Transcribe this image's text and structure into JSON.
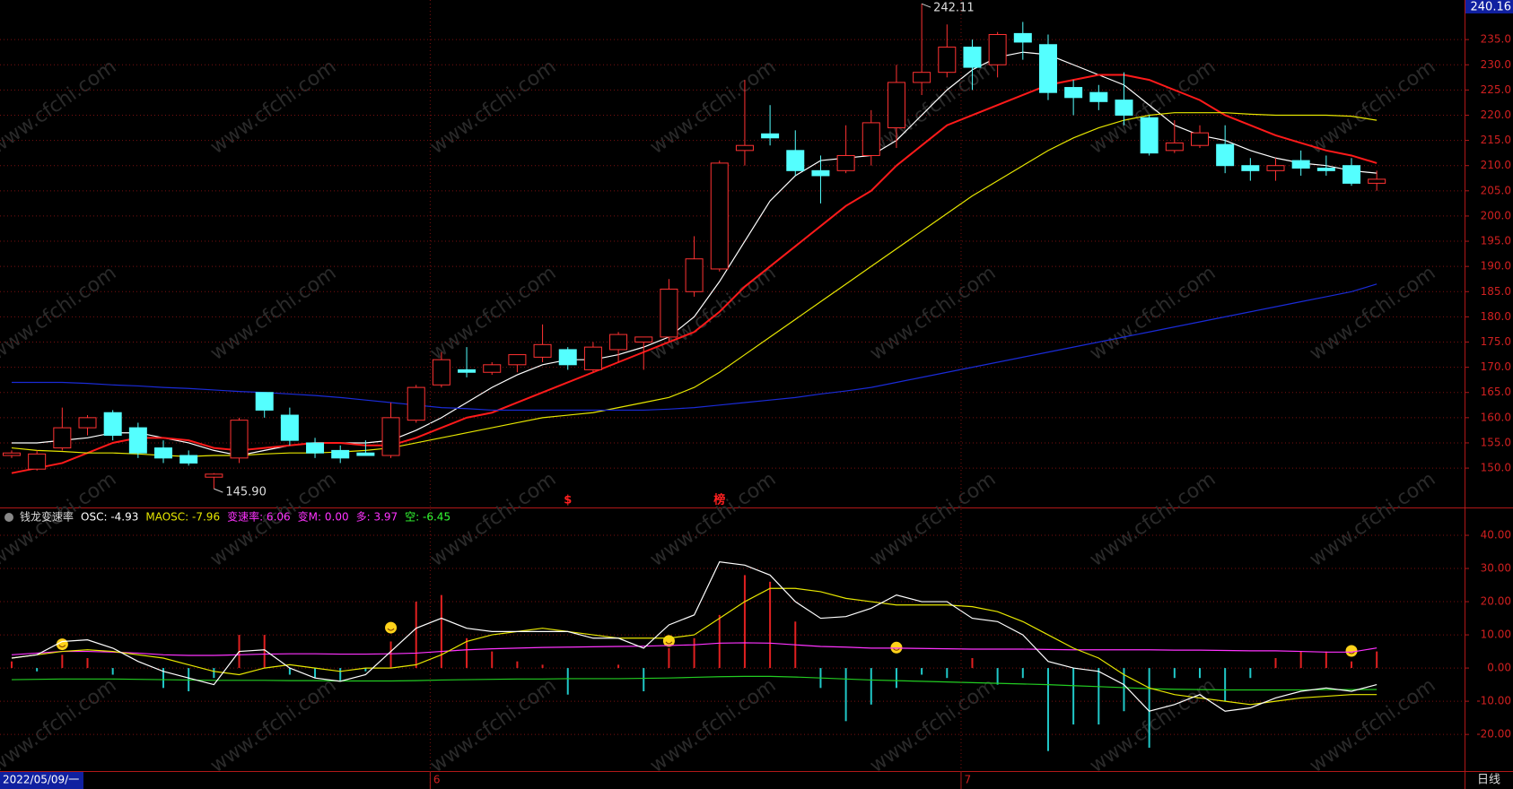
{
  "chart_data": [
    {
      "type": "candlestick",
      "open": [
        152.5,
        149.8,
        154,
        158,
        161,
        158,
        154,
        152.5,
        148.2,
        152,
        165,
        160.5,
        155,
        153.5,
        153,
        152.5,
        159.5,
        166.5,
        169.5,
        169,
        170.5,
        172,
        173.5,
        169.5,
        173.5,
        175,
        176,
        185,
        189.5,
        213,
        216.3,
        213,
        209,
        209,
        212,
        217.5,
        226.5,
        228.5,
        233.5,
        230,
        236.2,
        234,
        225.5,
        224.5,
        223,
        219.5,
        213,
        214,
        214.2,
        210,
        209,
        211,
        209.5,
        210,
        206.5
      ],
      "high": [
        153.5,
        153.5,
        162,
        160.5,
        161.5,
        159,
        155.5,
        153.5,
        149,
        160,
        165,
        162,
        156,
        154.5,
        155.5,
        163,
        166.5,
        173,
        174,
        171,
        172.5,
        178.5,
        174,
        175,
        177,
        176,
        187.5,
        196,
        211,
        227,
        222,
        217,
        212,
        218,
        221,
        230,
        242.11,
        238,
        235,
        236.5,
        238.5,
        236,
        227,
        226,
        228.5,
        220,
        219,
        218,
        218,
        211.5,
        211.5,
        213,
        212,
        211.5,
        209
      ],
      "low": [
        152,
        149.5,
        153.5,
        156.5,
        155.5,
        152,
        151,
        150.5,
        145.9,
        151,
        160,
        154.5,
        152,
        151,
        152.5,
        152,
        159,
        166,
        168,
        168.5,
        169,
        171,
        169.5,
        169,
        171,
        169.5,
        175,
        184,
        189,
        210,
        214,
        208,
        202.5,
        208.5,
        210,
        213.5,
        224,
        227.5,
        225,
        227.5,
        231,
        223,
        220,
        221,
        218,
        212,
        212.5,
        213.5,
        208.5,
        207,
        207,
        208,
        208,
        206,
        205
      ],
      "close": [
        153,
        152.8,
        158,
        160,
        156.5,
        153,
        152,
        151,
        148.8,
        159.5,
        161.5,
        155.5,
        153,
        152,
        152.5,
        160,
        166,
        171.5,
        169,
        170.5,
        172.5,
        174.5,
        170.5,
        174,
        176.5,
        176,
        185.5,
        191.5,
        210.5,
        214,
        215.5,
        209,
        208,
        212,
        218.5,
        226.5,
        228.5,
        233.5,
        229.5,
        236,
        234.5,
        224.5,
        223.5,
        222.7,
        220,
        212.5,
        214.5,
        216.5,
        210,
        209,
        210,
        209.5,
        209,
        206.5,
        207.3
      ],
      "up_color": "#ff3232",
      "down_color": "#54ffff",
      "lines": [
        {
          "color": "#ffffff",
          "values": [
            155,
            155,
            155.5,
            156,
            157,
            157,
            156,
            155,
            153.5,
            152.5,
            153.5,
            154.5,
            155,
            155,
            155,
            155.5,
            157.5,
            160,
            163,
            166,
            168.5,
            170.5,
            171.5,
            171.5,
            172.5,
            174,
            176,
            180,
            187,
            195,
            203,
            208,
            211,
            211.5,
            212,
            215,
            220,
            225,
            229,
            231.5,
            232.5,
            232,
            230,
            228,
            226,
            222,
            218,
            216,
            215,
            213,
            211.5,
            210.5,
            210,
            209,
            208.5
          ]
        },
        {
          "color": "#ff1a1a",
          "values": [
            149,
            150,
            151,
            153,
            155,
            156,
            156,
            155.5,
            154,
            153.5,
            154,
            154.5,
            155,
            155,
            154.5,
            154.5,
            156,
            158,
            160,
            161,
            163,
            165,
            167,
            169,
            171,
            173,
            175,
            177,
            181,
            186,
            190,
            194,
            198,
            202,
            205,
            210,
            214,
            218,
            220,
            222,
            224,
            226,
            227,
            228,
            228,
            227,
            225,
            223,
            220,
            218,
            216,
            214.5,
            213,
            212,
            210.5
          ]
        },
        {
          "color": "#e6e600",
          "values": [
            154,
            153.5,
            153.3,
            153,
            153,
            152.8,
            152.5,
            152.3,
            152.5,
            152.5,
            152.8,
            153,
            153,
            153.2,
            153.5,
            154,
            155,
            156,
            157,
            158,
            159,
            160,
            160.5,
            161,
            162,
            163,
            164,
            166,
            169,
            172.5,
            176,
            179.5,
            183,
            186.5,
            190,
            193.5,
            197,
            200.5,
            204,
            207,
            210,
            213,
            215.5,
            217.5,
            219,
            220,
            220.5,
            220.5,
            220.5,
            220.2,
            220,
            220,
            220,
            219.8,
            219
          ]
        },
        {
          "color": "#1a2bd6",
          "values": [
            167,
            167,
            167,
            166.8,
            166.5,
            166.3,
            166,
            165.8,
            165.5,
            165.2,
            165,
            164.7,
            164.4,
            164,
            163.5,
            163,
            162.5,
            162,
            161.8,
            161.5,
            161.5,
            161.5,
            161.5,
            161.5,
            161.5,
            161.5,
            161.7,
            162,
            162.5,
            163,
            163.5,
            164,
            164.7,
            165.3,
            166,
            167,
            168,
            169,
            170,
            171,
            172,
            173,
            174,
            175,
            176,
            177,
            178,
            179,
            180,
            181,
            182,
            183,
            184,
            185,
            186.5
          ]
        }
      ],
      "ylim": [
        142.9,
        242.85
      ],
      "yticks": [
        {
          "value": 150,
          "label": "150.0"
        },
        {
          "value": 155,
          "label": "155.0"
        },
        {
          "value": 160,
          "label": "160.0"
        },
        {
          "value": 165,
          "label": "165.0"
        },
        {
          "value": 170,
          "label": "170.0"
        },
        {
          "value": 175,
          "label": "175.0"
        },
        {
          "value": 180,
          "label": "180.0"
        },
        {
          "value": 185,
          "label": "185.0"
        },
        {
          "value": 190,
          "label": "190.0"
        },
        {
          "value": 195,
          "label": "195.0"
        },
        {
          "value": 200,
          "label": "200.0"
        },
        {
          "value": 205,
          "label": "205.0"
        },
        {
          "value": 210,
          "label": "210.0"
        },
        {
          "value": 215,
          "label": "215.0"
        },
        {
          "value": 220,
          "label": "220.0"
        },
        {
          "value": 225,
          "label": "225.0"
        },
        {
          "value": 230,
          "label": "230.0"
        },
        {
          "value": 235,
          "label": "235.0"
        }
      ],
      "axis_top_label": "240.16",
      "annotations": [
        {
          "index": 36,
          "value": 242.11
        },
        {
          "index": 8,
          "value": 145.9,
          "label": "145.90"
        }
      ],
      "markers": [
        {
          "index": 22,
          "label": "$"
        },
        {
          "index": 28,
          "label": "榜"
        }
      ],
      "grid": true
    },
    {
      "type": "indicator",
      "legend": [
        {
          "text": "钱龙变速率",
          "color": "#dddddd"
        },
        {
          "text": "OSC: -4.93",
          "color": "#ffffff"
        },
        {
          "text": "MAOSC: -7.96",
          "color": "#e6e600"
        },
        {
          "text": "变速率: 6.06",
          "color": "#ff33ff"
        },
        {
          "text": "变M: 0.00",
          "color": "#ff33ff"
        },
        {
          "text": "多: 3.97",
          "color": "#ff33ff"
        },
        {
          "text": "空: -6.45",
          "color": "#33ff33"
        }
      ],
      "bars": [
        2,
        -1,
        4,
        3,
        -2,
        0,
        -6,
        -7,
        -3,
        10,
        10,
        -2,
        -3,
        -4,
        -1,
        8,
        20,
        22,
        9,
        5,
        2,
        1,
        -8,
        0,
        1,
        -7,
        6,
        9,
        16,
        28,
        26,
        14,
        -6,
        -16,
        -11,
        -6,
        -2,
        -3,
        3,
        -5,
        -3,
        -25,
        -17,
        -17,
        -13,
        -24,
        -3,
        -3,
        -10,
        -3,
        3,
        5,
        5,
        2,
        5
      ],
      "bar_up_color": "#e02020",
      "bar_down_color": "#20c8c8",
      "lines": [
        {
          "color": "#ff33ff",
          "values": [
            4,
            4.5,
            5,
            5,
            4.8,
            4.5,
            4,
            3.8,
            3.8,
            4,
            4.2,
            4.3,
            4.3,
            4.2,
            4.2,
            4.3,
            4.5,
            5,
            5.5,
            5.8,
            6,
            6.2,
            6.3,
            6.4,
            6.5,
            6.6,
            6.8,
            7,
            7.5,
            7.6,
            7.5,
            7,
            6.5,
            6.3,
            6,
            6,
            5.9,
            5.8,
            5.7,
            5.7,
            5.7,
            5.6,
            5.5,
            5.5,
            5.5,
            5.5,
            5.4,
            5.4,
            5.3,
            5.2,
            5.2,
            5,
            4.8,
            4.8,
            6.06
          ]
        },
        {
          "color": "#22cc22",
          "values": [
            -3.5,
            -3.4,
            -3.3,
            -3.3,
            -3.3,
            -3.4,
            -3.5,
            -3.6,
            -3.7,
            -3.7,
            -3.7,
            -3.8,
            -3.8,
            -3.9,
            -3.9,
            -3.9,
            -3.8,
            -3.6,
            -3.5,
            -3.4,
            -3.3,
            -3.3,
            -3.2,
            -3.2,
            -3.2,
            -3.1,
            -3,
            -2.8,
            -2.6,
            -2.5,
            -2.5,
            -2.7,
            -3,
            -3.3,
            -3.6,
            -3.8,
            -4,
            -4.2,
            -4.4,
            -4.6,
            -4.8,
            -5,
            -5.3,
            -5.6,
            -5.9,
            -6.2,
            -6.4,
            -6.5,
            -6.6,
            -6.6,
            -6.6,
            -6.6,
            -6.5,
            -6.5,
            -6.45
          ]
        },
        {
          "color": "#e6e600",
          "values": [
            3,
            4,
            5,
            5.5,
            5,
            4,
            3,
            1,
            -1,
            -2,
            0,
            1,
            0,
            -1,
            0,
            0,
            1,
            4,
            8,
            10,
            11,
            12,
            11,
            10,
            9,
            9,
            9,
            10,
            15,
            20,
            24,
            24,
            23,
            21,
            20,
            19,
            19,
            19,
            18.5,
            17,
            14,
            10,
            6,
            3,
            -2,
            -6,
            -8,
            -9,
            -10,
            -11,
            -10,
            -9,
            -8.5,
            -8,
            -8
          ]
        },
        {
          "color": "#ffffff",
          "values": [
            3,
            4,
            8,
            8.5,
            6,
            2,
            -1,
            -3,
            -5,
            5,
            5.5,
            0,
            -3,
            -4,
            -2,
            5,
            12,
            15,
            12,
            11,
            11,
            11,
            11,
            9,
            9,
            6,
            13,
            16,
            32,
            31,
            28,
            20,
            15,
            15.5,
            18,
            22,
            20,
            20,
            15,
            14,
            10,
            2,
            0,
            -1,
            -5,
            -13,
            -11,
            -8,
            -13,
            -12,
            -9,
            -7,
            -6,
            -7,
            -5
          ]
        }
      ],
      "signals": [
        {
          "index": 2,
          "value": 5
        },
        {
          "index": 15,
          "value": 10
        },
        {
          "index": 26,
          "value": 6
        },
        {
          "index": 35,
          "value": 4
        },
        {
          "index": 53,
          "value": 3
        }
      ],
      "ylim": [
        -30.5,
        47.3
      ],
      "yticks": [
        {
          "value": -20,
          "label": "-20.00"
        },
        {
          "value": -10,
          "label": "-10.00"
        },
        {
          "value": 0,
          "label": "0.00"
        },
        {
          "value": 10,
          "label": "10.00"
        },
        {
          "value": 20,
          "label": "20.00"
        },
        {
          "value": 30,
          "label": "30.00"
        },
        {
          "value": 40,
          "label": "40.00"
        }
      ],
      "grid": true
    }
  ],
  "x_labels": [
    {
      "index": 0,
      "label": "2022/05/09/一"
    },
    {
      "index": 17,
      "label": "6"
    },
    {
      "index": 38,
      "label": "7"
    }
  ],
  "period": "日线",
  "watermark": "www.cfchi.com"
}
